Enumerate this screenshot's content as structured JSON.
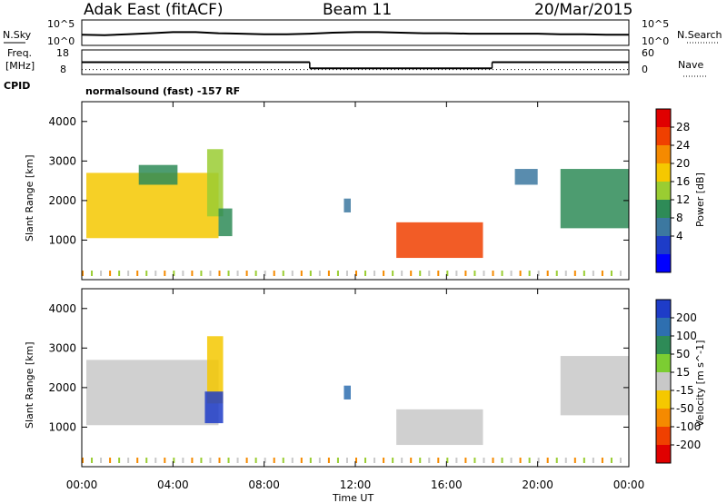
{
  "header": {
    "station": "Adak East (fitACF)",
    "beam": "Beam 11",
    "date": "20/Mar/2015"
  },
  "noise_panel": {
    "left_label": "N.Sky",
    "right_label": "N.Search",
    "left_top": "10^5",
    "left_bottom": "10^0",
    "right_top": "10^5",
    "right_bottom": "10^0",
    "noise_level_log10": [
      2.1,
      2.0,
      2.2,
      2.4,
      2.6,
      2.6,
      2.4,
      2.3,
      2.2,
      2.2,
      2.3,
      2.5,
      2.6,
      2.6,
      2.5,
      2.4,
      2.4,
      2.3,
      2.3,
      2.3,
      2.3,
      2.2,
      2.2,
      2.1,
      2.1
    ]
  },
  "freq_panel": {
    "left_label_1": "Freq.",
    "left_label_2": "[MHz]",
    "left_top": "18",
    "left_bottom": "8",
    "right_label": "Nave",
    "right_top": "60",
    "right_bottom": "0",
    "freq_segments": [
      {
        "start_hour": 0,
        "end_hour": 10,
        "freq_mhz": 13.0
      },
      {
        "start_hour": 10,
        "end_hour": 18,
        "freq_mhz": 10.5
      },
      {
        "start_hour": 18,
        "end_hour": 24,
        "freq_mhz": 13.0
      }
    ],
    "nave": 12
  },
  "cpid_panel": {
    "label": "CPID",
    "text": "normalsound (fast) -157 RF"
  },
  "power_panel": {
    "ylabel": "Slant Range [km]",
    "cb_label": "Power [dB]",
    "cb_ticks": [
      "28",
      "24",
      "20",
      "16",
      "12",
      "8",
      "4"
    ],
    "cb_colors": [
      "#e00000",
      "#f04000",
      "#f58a00",
      "#f5c800",
      "#9acd32",
      "#2e8b57",
      "#3c78a0",
      "#1e3cc8",
      "#0000ff"
    ]
  },
  "velocity_panel": {
    "ylabel": "Slant Range [km]",
    "cb_label": "Velocity [m s^-1]",
    "cb_ticks": [
      "200",
      "100",
      "50",
      "15",
      "-15",
      "-50",
      "-100",
      "-200"
    ],
    "cb_colors": [
      "#1e3cc8",
      "#2e6fb0",
      "#2e8b57",
      "#7ccd32",
      "#c8c8c8",
      "#f5c800",
      "#f58a00",
      "#f04000",
      "#e00000"
    ]
  },
  "time_axis": {
    "xlabel": "Time UT",
    "ticks": [
      "00:00",
      "04:00",
      "08:00",
      "12:00",
      "16:00",
      "20:00",
      "00:00"
    ]
  },
  "chart_data": [
    {
      "type": "heatmap",
      "title": "Power [dB]",
      "xlabel": "Time UT",
      "ylabel": "Slant Range [km]",
      "xlim": [
        0,
        24
      ],
      "ylim": [
        0,
        4500
      ],
      "yticks": [
        1000,
        2000,
        3000,
        4000
      ],
      "echo_regions": [
        {
          "start_hour": 0.2,
          "end_hour": 6.0,
          "min_range_km": 1050,
          "max_range_km": 2700,
          "power_db": 16
        },
        {
          "start_hour": 2.5,
          "end_hour": 4.2,
          "min_range_km": 2400,
          "max_range_km": 2900,
          "power_db": 8
        },
        {
          "start_hour": 5.5,
          "end_hour": 6.2,
          "min_range_km": 1600,
          "max_range_km": 3300,
          "power_db": 12
        },
        {
          "start_hour": 6.0,
          "end_hour": 6.6,
          "min_range_km": 1100,
          "max_range_km": 1800,
          "power_db": 8
        },
        {
          "start_hour": 11.5,
          "end_hour": 11.8,
          "min_range_km": 1700,
          "max_range_km": 2050,
          "power_db": 6
        },
        {
          "start_hour": 13.8,
          "end_hour": 17.6,
          "min_range_km": 550,
          "max_range_km": 1450,
          "power_db": 24
        },
        {
          "start_hour": 19.0,
          "end_hour": 20.0,
          "min_range_km": 2400,
          "max_range_km": 2800,
          "power_db": 4
        },
        {
          "start_hour": 21.0,
          "end_hour": 24.0,
          "min_range_km": 1300,
          "max_range_km": 2800,
          "power_db": 8
        }
      ]
    },
    {
      "type": "heatmap",
      "title": "Velocity [m s^-1]",
      "xlabel": "Time UT",
      "ylabel": "Slant Range [km]",
      "xlim": [
        0,
        24
      ],
      "ylim": [
        0,
        4500
      ],
      "yticks": [
        1000,
        2000,
        3000,
        4000
      ],
      "echo_regions": [
        {
          "start_hour": 0.2,
          "end_hour": 6.0,
          "min_range_km": 1050,
          "max_range_km": 2700,
          "velocity_ms": 0
        },
        {
          "start_hour": 5.5,
          "end_hour": 6.2,
          "min_range_km": 1600,
          "max_range_km": 3300,
          "velocity_ms": -30
        },
        {
          "start_hour": 5.4,
          "end_hour": 6.2,
          "min_range_km": 1100,
          "max_range_km": 1900,
          "velocity_ms": 220
        },
        {
          "start_hour": 11.5,
          "end_hour": 11.8,
          "min_range_km": 1700,
          "max_range_km": 2050,
          "velocity_ms": 120
        },
        {
          "start_hour": 13.8,
          "end_hour": 17.6,
          "min_range_km": 550,
          "max_range_km": 1450,
          "velocity_ms": 0
        },
        {
          "start_hour": 21.0,
          "end_hour": 24.0,
          "min_range_km": 1300,
          "max_range_km": 2800,
          "velocity_ms": 0
        }
      ]
    }
  ]
}
